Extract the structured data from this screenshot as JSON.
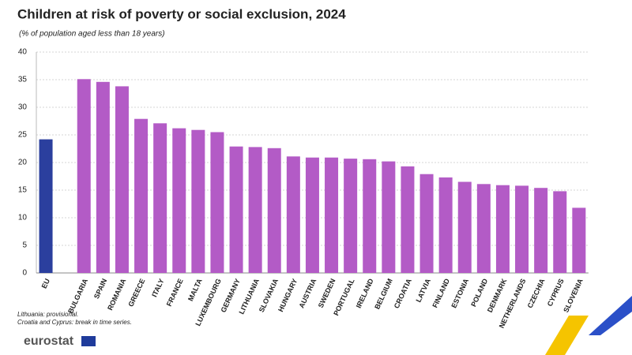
{
  "chart_data": {
    "type": "bar",
    "title": "Children at risk of poverty or social exclusion, 2024",
    "subtitle": "(% of population aged less than 18 years)",
    "categories": [
      "EU",
      null,
      "BULGARIA",
      "SPAIN",
      "ROMANIA",
      "GREECE",
      "ITALY",
      "FRANCE",
      "MALTA",
      "LUXEMBOURG",
      "GERMANY",
      "LITHUANIA",
      "SLOVAKIA",
      "HUNGARY",
      "AUSTRIA",
      "SWEDEN",
      "PORTUGAL",
      "IRELAND",
      "BELGIUM",
      "CROATIA",
      "LATVIA",
      "FINLAND",
      "ESTONIA",
      "POLAND",
      "DENMARK",
      "NETHERLANDS",
      "CZECHIA",
      "CYPRUS",
      "SLOVENIA"
    ],
    "values": [
      24.2,
      null,
      35.1,
      34.6,
      33.8,
      27.9,
      27.1,
      26.2,
      25.9,
      25.5,
      22.9,
      22.8,
      22.6,
      21.1,
      20.9,
      20.9,
      20.7,
      20.6,
      20.2,
      19.3,
      17.9,
      17.3,
      16.5,
      16.1,
      15.9,
      15.8,
      15.4,
      14.8,
      11.8
    ],
    "colors": [
      "#2b3f9e",
      null,
      "#b35bc6",
      "#b35bc6",
      "#b35bc6",
      "#b35bc6",
      "#b35bc6",
      "#b35bc6",
      "#b35bc6",
      "#b35bc6",
      "#b35bc6",
      "#b35bc6",
      "#b35bc6",
      "#b35bc6",
      "#b35bc6",
      "#b35bc6",
      "#b35bc6",
      "#b35bc6",
      "#b35bc6",
      "#b35bc6",
      "#b35bc6",
      "#b35bc6",
      "#b35bc6",
      "#b35bc6",
      "#b35bc6",
      "#b35bc6",
      "#b35bc6",
      "#b35bc6",
      "#b35bc6"
    ],
    "ylim": [
      0,
      40
    ],
    "yticks": [
      0,
      5,
      10,
      15,
      20,
      25,
      30,
      35,
      40
    ],
    "grid": true,
    "notes": [
      "Lithuania: provisional.",
      "Croatia and Cyprus: break in time series."
    ]
  },
  "brand": "eurostat"
}
